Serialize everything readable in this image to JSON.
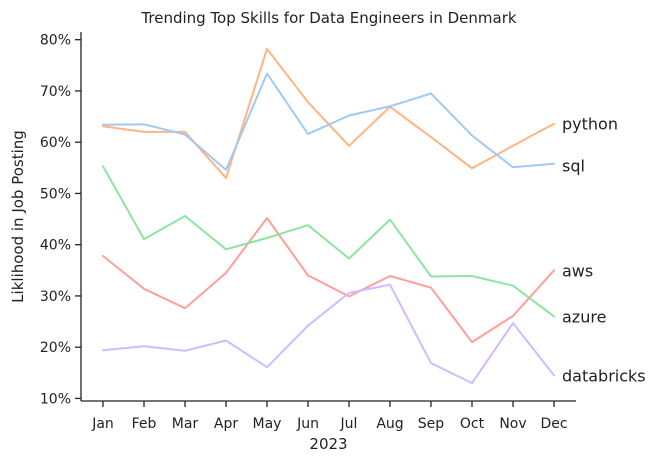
{
  "chart_data": {
    "type": "line",
    "title": "Trending Top Skills for Data Engineers in Denmark",
    "xlabel": "2023",
    "ylabel": "Liklihood in Job Posting",
    "categories": [
      "Jan",
      "Feb",
      "Mar",
      "Apr",
      "May",
      "Jun",
      "Jul",
      "Aug",
      "Sep",
      "Oct",
      "Nov",
      "Dec"
    ],
    "yticks": [
      10,
      20,
      30,
      40,
      50,
      60,
      70,
      80
    ],
    "ytick_labels": [
      "10%",
      "20%",
      "30%",
      "40%",
      "50%",
      "60%",
      "70%",
      "80%"
    ],
    "ylim": [
      9.5,
      81.5
    ],
    "grid": false,
    "legend": "labels at right end of lines",
    "series": [
      {
        "name": "python",
        "color": "#ffb482",
        "values": [
          63.1,
          62.0,
          62.0,
          53.0,
          78.2,
          67.8,
          59.3,
          66.9,
          61.0,
          54.9,
          59.3,
          63.6
        ]
      },
      {
        "name": "sql",
        "color": "#a1c9f4",
        "values": [
          63.4,
          63.5,
          61.5,
          54.6,
          73.4,
          61.6,
          65.2,
          67.0,
          69.5,
          61.3,
          55.1,
          55.8
        ]
      },
      {
        "name": "aws",
        "color": "#ff9f9b",
        "values": [
          37.8,
          31.4,
          27.6,
          34.5,
          45.2,
          34.0,
          29.9,
          33.9,
          31.6,
          21.0,
          26.1,
          35.0
        ]
      },
      {
        "name": "azure",
        "color": "#8de5a1",
        "values": [
          55.3,
          41.1,
          45.6,
          39.1,
          41.3,
          43.8,
          37.3,
          44.9,
          33.8,
          33.9,
          32.0,
          26.0
        ]
      },
      {
        "name": "databricks",
        "color": "#d0bbff",
        "values": [
          19.4,
          20.2,
          19.3,
          21.3,
          16.1,
          24.2,
          30.6,
          32.2,
          16.9,
          13.0,
          24.7,
          14.5
        ]
      }
    ]
  }
}
